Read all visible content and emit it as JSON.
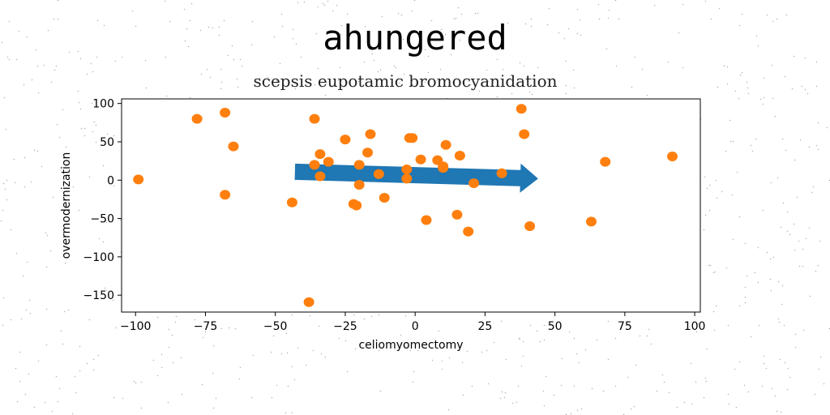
{
  "header": {
    "title": "ahungered",
    "subtitle": "scepsis eupotamic bromocyanidation"
  },
  "chart_data": {
    "type": "scatter",
    "xlabel": "celiomyomectomy",
    "ylabel": "overmodernization",
    "xlim": [
      -105,
      102
    ],
    "ylim": [
      -172,
      106
    ],
    "xticks": [
      -100,
      -75,
      -50,
      -25,
      0,
      25,
      50,
      75,
      100
    ],
    "yticks": [
      100,
      50,
      0,
      -50,
      -100,
      -150
    ],
    "xtick_labels": [
      "−100",
      "−75",
      "−50",
      "−25",
      "0",
      "25",
      "50",
      "75",
      "100"
    ],
    "ytick_labels": [
      "100",
      "50",
      "0",
      "−50",
      "−100",
      "−150"
    ],
    "grid": false,
    "colors": {
      "points": "#ff7f0e",
      "arrow": "#1f77b4"
    },
    "arrow": {
      "x_start": -43,
      "y_start": 11,
      "x_end": 44,
      "y_end": 2
    },
    "points": [
      {
        "x": -99,
        "y": 1
      },
      {
        "x": -78,
        "y": 80
      },
      {
        "x": -68,
        "y": 88
      },
      {
        "x": -65,
        "y": 44
      },
      {
        "x": -68,
        "y": -19
      },
      {
        "x": -44,
        "y": -29
      },
      {
        "x": -36,
        "y": 80
      },
      {
        "x": -34,
        "y": 34
      },
      {
        "x": -31,
        "y": 24
      },
      {
        "x": -36,
        "y": 20
      },
      {
        "x": -34,
        "y": 5
      },
      {
        "x": -38,
        "y": -159
      },
      {
        "x": -25,
        "y": 53
      },
      {
        "x": -16,
        "y": 60
      },
      {
        "x": -17,
        "y": 36
      },
      {
        "x": -20,
        "y": 20
      },
      {
        "x": -13,
        "y": 8
      },
      {
        "x": -20,
        "y": -6
      },
      {
        "x": -22,
        "y": -31
      },
      {
        "x": -21,
        "y": -33
      },
      {
        "x": -11,
        "y": -23
      },
      {
        "x": -2,
        "y": 55
      },
      {
        "x": -1,
        "y": 55
      },
      {
        "x": 2,
        "y": 27
      },
      {
        "x": -3,
        "y": 14
      },
      {
        "x": -3,
        "y": 2
      },
      {
        "x": 4,
        "y": -52
      },
      {
        "x": 8,
        "y": 26
      },
      {
        "x": 10,
        "y": 18
      },
      {
        "x": 11,
        "y": 46
      },
      {
        "x": 16,
        "y": 32
      },
      {
        "x": 10,
        "y": 16
      },
      {
        "x": 21,
        "y": -4
      },
      {
        "x": 15,
        "y": -45
      },
      {
        "x": 19,
        "y": -67
      },
      {
        "x": 31,
        "y": 9
      },
      {
        "x": 38,
        "y": 93
      },
      {
        "x": 39,
        "y": 60
      },
      {
        "x": 41,
        "y": -60
      },
      {
        "x": 63,
        "y": -54
      },
      {
        "x": 68,
        "y": 24
      },
      {
        "x": 92,
        "y": 31
      }
    ]
  }
}
